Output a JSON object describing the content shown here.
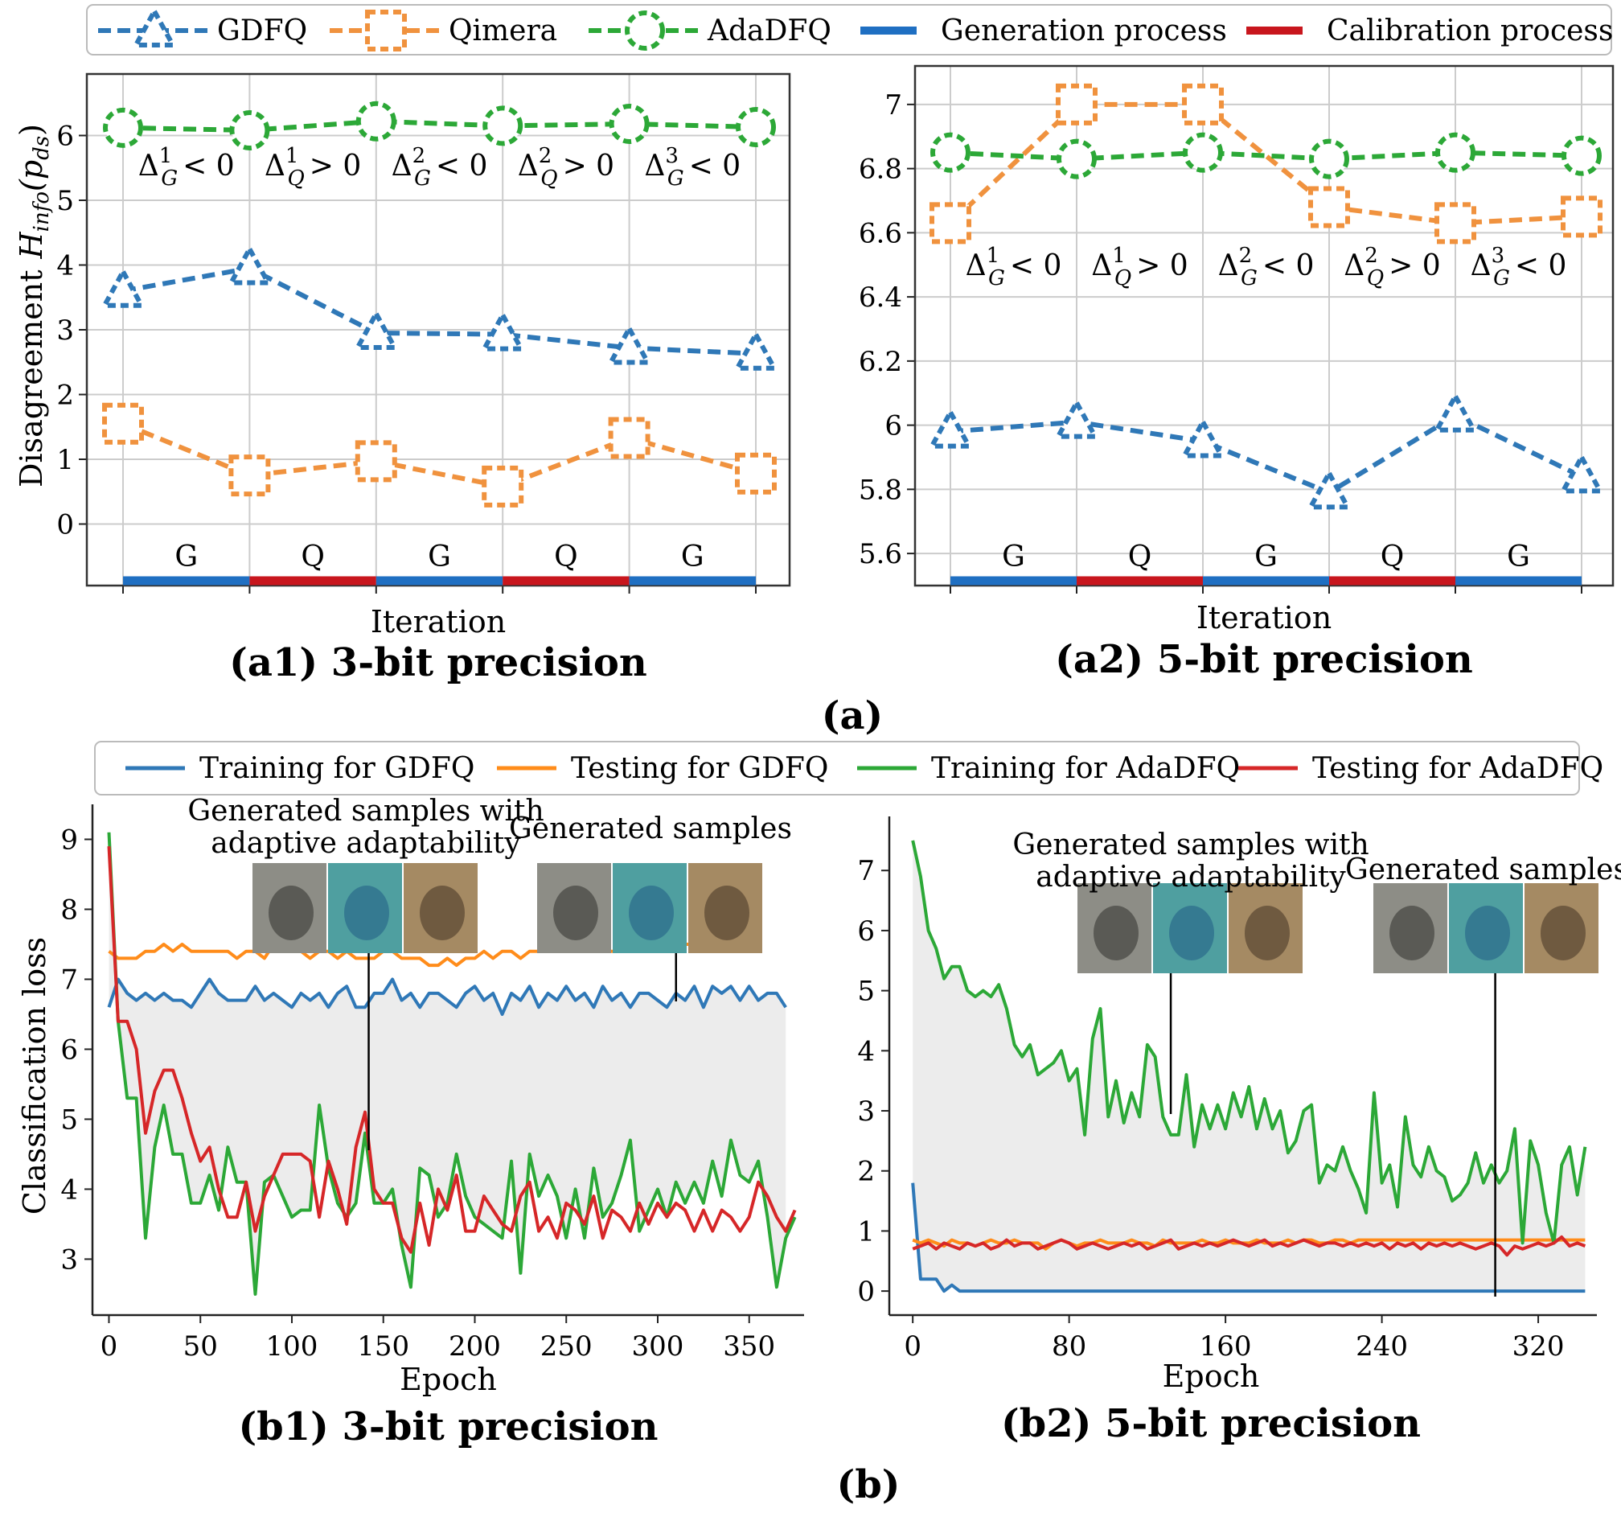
{
  "figure": {
    "group_a_label": "(a)",
    "group_b_label": "(b)"
  },
  "legend_a": {
    "items": [
      {
        "label": "GDFQ",
        "color": "#2f78b7",
        "marker": "triangle"
      },
      {
        "label": "Qimera",
        "color": "#f0923e",
        "marker": "square"
      },
      {
        "label": "AdaDFQ",
        "color": "#2ca837",
        "marker": "circle"
      },
      {
        "label": "Generation process",
        "color": "#1f6fc2",
        "marker": "bar"
      },
      {
        "label": "Calibration process",
        "color": "#c8161d",
        "marker": "bar"
      }
    ]
  },
  "legend_b": {
    "items": [
      {
        "label": "Training for GDFQ",
        "color": "#2f78b7"
      },
      {
        "label": "Testing for GDFQ",
        "color": "#ff8c1a"
      },
      {
        "label": "Training for AdaDFQ",
        "color": "#2ca837"
      },
      {
        "label": "Testing for AdaDFQ",
        "color": "#d62728"
      }
    ]
  },
  "chart_data": [
    {
      "id": "a1",
      "type": "line",
      "title": "(a1) 3-bit precision",
      "xlabel": "Iteration",
      "ylabel": "Disagreement",
      "ylabel_math": {
        "main": "H",
        "sub1": "info",
        "arg": "(p",
        "sub2": "ds",
        "close": ")"
      },
      "x": [
        0,
        1,
        2,
        3,
        4,
        5
      ],
      "ylim": [
        -0.95,
        6.95
      ],
      "yticks": [
        0,
        1,
        2,
        3,
        4,
        5,
        6
      ],
      "grid": true,
      "series": [
        {
          "name": "GDFQ",
          "values": [
            3.6,
            3.95,
            2.95,
            2.93,
            2.72,
            2.63
          ]
        },
        {
          "name": "Qimera",
          "values": [
            1.55,
            0.75,
            0.97,
            0.58,
            1.33,
            0.78
          ]
        },
        {
          "name": "AdaDFQ",
          "values": [
            6.12,
            6.08,
            6.22,
            6.15,
            6.18,
            6.13
          ]
        }
      ],
      "phase_labels": [
        "G",
        "Q",
        "G",
        "Q",
        "G"
      ],
      "phase_types": [
        "generation",
        "calibration",
        "generation",
        "calibration",
        "generation"
      ],
      "delta_annotations": [
        {
          "sym": "Δ",
          "sub": "G",
          "sup": "1",
          "rel": "< 0"
        },
        {
          "sym": "Δ",
          "sub": "Q",
          "sup": "1",
          "rel": "> 0"
        },
        {
          "sym": "Δ",
          "sub": "G",
          "sup": "2",
          "rel": "< 0"
        },
        {
          "sym": "Δ",
          "sub": "Q",
          "sup": "2",
          "rel": "> 0"
        },
        {
          "sym": "Δ",
          "sub": "G",
          "sup": "3",
          "rel": "< 0"
        }
      ]
    },
    {
      "id": "a2",
      "type": "line",
      "title": "(a2) 5-bit precision",
      "xlabel": "Iteration",
      "ylabel": "",
      "x": [
        0,
        1,
        2,
        3,
        4,
        5
      ],
      "ylim": [
        5.5,
        7.12
      ],
      "yticks": [
        5.6,
        5.8,
        6.0,
        6.2,
        6.4,
        6.6,
        6.8,
        7.0
      ],
      "grid": true,
      "series": [
        {
          "name": "GDFQ",
          "values": [
            5.98,
            6.01,
            5.95,
            5.79,
            6.03,
            5.84
          ]
        },
        {
          "name": "Qimera",
          "values": [
            6.63,
            7.0,
            7.0,
            6.68,
            6.63,
            6.65
          ]
        },
        {
          "name": "AdaDFQ",
          "values": [
            6.85,
            6.83,
            6.85,
            6.83,
            6.85,
            6.84
          ]
        }
      ],
      "phase_labels": [
        "G",
        "Q",
        "G",
        "Q",
        "G"
      ],
      "phase_types": [
        "generation",
        "calibration",
        "generation",
        "calibration",
        "generation"
      ],
      "delta_annotations": [
        {
          "sym": "Δ",
          "sub": "G",
          "sup": "1",
          "rel": "< 0"
        },
        {
          "sym": "Δ",
          "sub": "Q",
          "sup": "1",
          "rel": "> 0"
        },
        {
          "sym": "Δ",
          "sub": "G",
          "sup": "2",
          "rel": "< 0"
        },
        {
          "sym": "Δ",
          "sub": "Q",
          "sup": "2",
          "rel": "> 0"
        },
        {
          "sym": "Δ",
          "sub": "G",
          "sup": "3",
          "rel": "< 0"
        }
      ]
    },
    {
      "id": "b1",
      "type": "line",
      "title": "(b1) 3-bit precision",
      "xlabel": "Epoch",
      "ylabel": "Classification loss",
      "xlim": [
        -9,
        380
      ],
      "ylim": [
        2.2,
        9.5
      ],
      "xticks": [
        0,
        50,
        100,
        150,
        200,
        250,
        300,
        350
      ],
      "yticks": [
        3,
        4,
        5,
        6,
        7,
        8,
        9
      ],
      "grid": false,
      "annotations": [
        {
          "text": [
            "Generated samples with",
            "adaptive adaptability"
          ],
          "epoch": 142
        },
        {
          "text": [
            "Generated samples"
          ],
          "epoch": 310
        }
      ],
      "series": [
        {
          "name": "Training for GDFQ",
          "x_step": 5,
          "values": [
            6.6,
            7.0,
            6.8,
            6.7,
            6.8,
            6.7,
            6.8,
            6.7,
            6.7,
            6.6,
            6.8,
            7.0,
            6.8,
            6.7,
            6.7,
            6.7,
            6.9,
            6.7,
            6.8,
            6.7,
            6.6,
            6.8,
            6.7,
            6.8,
            6.6,
            6.8,
            6.9,
            6.6,
            6.6,
            6.8,
            6.8,
            7.0,
            6.7,
            6.8,
            6.6,
            6.8,
            6.8,
            6.7,
            6.6,
            6.8,
            6.9,
            6.7,
            6.8,
            6.5,
            6.8,
            6.7,
            6.9,
            6.6,
            6.8,
            6.7,
            6.9,
            6.7,
            6.8,
            6.6,
            6.9,
            6.7,
            6.8,
            6.6,
            6.8,
            6.8,
            6.7,
            6.6,
            6.8,
            6.7,
            6.9,
            6.6,
            6.9,
            6.8,
            6.9,
            6.7,
            6.9,
            6.7,
            6.8,
            6.8,
            6.6
          ]
        },
        {
          "name": "Testing for GDFQ",
          "x_step": 5,
          "values": [
            7.4,
            7.3,
            7.3,
            7.3,
            7.4,
            7.4,
            7.5,
            7.4,
            7.5,
            7.4,
            7.4,
            7.4,
            7.4,
            7.4,
            7.3,
            7.4,
            7.4,
            7.3,
            7.5,
            7.4,
            7.4,
            7.4,
            7.3,
            7.4,
            7.4,
            7.3,
            7.4,
            7.3,
            7.3,
            7.3,
            7.4,
            7.4,
            7.3,
            7.3,
            7.3,
            7.2,
            7.2,
            7.3,
            7.2,
            7.3,
            7.3,
            7.4,
            7.3,
            7.4,
            7.4,
            7.3,
            7.4,
            7.4,
            7.5,
            7.5,
            7.4,
            7.5,
            7.4,
            7.5,
            7.4,
            7.4,
            7.4,
            7.4,
            7.4,
            7.4,
            7.4,
            7.4,
            7.4,
            7.5,
            7.5,
            7.4,
            7.4,
            7.4,
            7.4,
            7.4,
            7.4,
            7.4
          ]
        },
        {
          "name": "Training for AdaDFQ",
          "x_step": 5,
          "values": [
            9.1,
            6.4,
            5.3,
            5.3,
            3.3,
            4.6,
            5.2,
            4.5,
            4.5,
            3.8,
            3.8,
            4.2,
            3.7,
            4.6,
            4.1,
            4.1,
            2.5,
            4.1,
            4.2,
            3.9,
            3.6,
            3.7,
            3.7,
            5.2,
            4.3,
            3.8,
            3.6,
            3.8,
            4.8,
            3.8,
            3.8,
            4.0,
            3.2,
            2.6,
            4.3,
            4.2,
            3.6,
            3.8,
            4.5,
            3.9,
            3.6,
            3.5,
            3.4,
            3.3,
            4.4,
            2.8,
            4.5,
            3.9,
            4.2,
            3.9,
            3.3,
            4.0,
            3.3,
            4.3,
            3.6,
            3.8,
            4.2,
            4.7,
            3.4,
            3.7,
            4.0,
            3.6,
            4.1,
            3.8,
            4.1,
            3.8,
            4.4,
            3.9,
            4.7,
            4.2,
            4.1,
            4.4,
            3.6,
            2.6,
            3.3,
            3.6
          ]
        },
        {
          "name": "Testing for AdaDFQ",
          "x_step": 5,
          "values": [
            8.9,
            6.4,
            6.4,
            6.0,
            4.8,
            5.4,
            5.7,
            5.7,
            5.3,
            4.8,
            4.4,
            4.6,
            4.0,
            3.6,
            3.6,
            4.1,
            3.4,
            3.9,
            4.2,
            4.5,
            4.5,
            4.5,
            4.4,
            3.6,
            4.4,
            4.0,
            3.5,
            4.6,
            5.1,
            4.0,
            3.8,
            3.8,
            3.3,
            3.1,
            3.8,
            3.2,
            4.0,
            3.7,
            4.2,
            3.4,
            3.4,
            3.9,
            3.7,
            3.5,
            3.4,
            3.9,
            4.1,
            3.4,
            3.6,
            3.3,
            3.8,
            3.7,
            3.5,
            3.9,
            3.3,
            3.7,
            3.6,
            3.4,
            3.8,
            3.5,
            3.8,
            3.6,
            3.8,
            3.7,
            3.4,
            3.7,
            3.4,
            3.7,
            3.6,
            3.4,
            3.6,
            4.1,
            3.9,
            3.6,
            3.4,
            3.7
          ]
        }
      ]
    },
    {
      "id": "b2",
      "type": "line",
      "title": "(b2) 5-bit precision",
      "xlabel": "Epoch",
      "ylabel": "",
      "xlim": [
        -12,
        350
      ],
      "ylim": [
        -0.4,
        7.9
      ],
      "xticks": [
        0,
        80,
        160,
        240,
        320
      ],
      "yticks": [
        0,
        1,
        2,
        3,
        4,
        5,
        6,
        7
      ],
      "grid": false,
      "annotations": [
        {
          "text": [
            "Generated samples with",
            "adaptive adaptability"
          ],
          "epoch": 132
        },
        {
          "text": [
            "Generated samples"
          ],
          "epoch": 298
        }
      ],
      "series": [
        {
          "name": "Training for GDFQ",
          "x_step": 4,
          "values": [
            1.8,
            0.2,
            0.2,
            0.2,
            0.0,
            0.1,
            0.0,
            0.0,
            0.0,
            0.0,
            0.0,
            0.0,
            0.0,
            0.0,
            0.0,
            0.0,
            0.0,
            0.0,
            0.0,
            0.0,
            0.0,
            0.0,
            0.0,
            0.0,
            0.0,
            0.0,
            0.0,
            0.0,
            0.0,
            0.0,
            0.0,
            0.0,
            0.0,
            0.0,
            0.0,
            0.0,
            0.0,
            0.0,
            0.0,
            0.0,
            0.0,
            0.0,
            0.0,
            0.0,
            0.0,
            0.0,
            0.0,
            0.0,
            0.0,
            0.0,
            0.0,
            0.0,
            0.0,
            0.0,
            0.0,
            0.0,
            0.0,
            0.0,
            0.0,
            0.0,
            0.0,
            0.0,
            0.0,
            0.0,
            0.0,
            0.0,
            0.0,
            0.0,
            0.0,
            0.0,
            0.0,
            0.0,
            0.0,
            0.0,
            0.0,
            0.0,
            0.0,
            0.0,
            0.0,
            0.0,
            0.0,
            0.0,
            0.0,
            0.0,
            0.0,
            0.0,
            0.0
          ]
        },
        {
          "name": "Testing for GDFQ",
          "x_step": 4,
          "values": [
            0.85,
            0.8,
            0.85,
            0.8,
            0.75,
            0.85,
            0.8,
            0.8,
            0.75,
            0.8,
            0.85,
            0.8,
            0.8,
            0.85,
            0.8,
            0.8,
            0.8,
            0.7,
            0.8,
            0.85,
            0.8,
            0.75,
            0.8,
            0.8,
            0.85,
            0.8,
            0.8,
            0.8,
            0.85,
            0.8,
            0.8,
            0.75,
            0.85,
            0.8,
            0.8,
            0.8,
            0.8,
            0.85,
            0.8,
            0.8,
            0.85,
            0.8,
            0.8,
            0.8,
            0.85,
            0.8,
            0.8,
            0.8,
            0.85,
            0.8,
            0.85,
            0.85,
            0.8,
            0.8,
            0.85,
            0.85,
            0.8,
            0.85,
            0.85,
            0.85,
            0.85,
            0.85,
            0.85,
            0.85,
            0.85,
            0.85,
            0.85,
            0.85,
            0.85,
            0.85,
            0.85,
            0.85,
            0.85,
            0.85,
            0.85,
            0.85,
            0.85,
            0.85,
            0.85,
            0.85,
            0.85,
            0.85,
            0.85,
            0.85,
            0.85,
            0.85,
            0.85
          ]
        },
        {
          "name": "Training for AdaDFQ",
          "x_step": 4,
          "values": [
            7.5,
            6.9,
            6.0,
            5.7,
            5.2,
            5.4,
            5.4,
            5.0,
            4.9,
            5.0,
            4.9,
            5.1,
            4.7,
            4.1,
            3.9,
            4.1,
            3.6,
            3.7,
            3.8,
            4.0,
            3.5,
            3.7,
            2.6,
            4.2,
            4.7,
            2.9,
            3.5,
            2.8,
            3.3,
            2.9,
            4.1,
            3.9,
            2.9,
            2.6,
            2.6,
            3.6,
            2.4,
            3.1,
            2.7,
            3.1,
            2.7,
            3.3,
            2.9,
            3.4,
            2.7,
            3.2,
            2.7,
            3.0,
            2.3,
            2.5,
            3.0,
            3.1,
            1.8,
            2.1,
            2.0,
            2.4,
            2.0,
            1.7,
            1.3,
            3.3,
            1.8,
            2.1,
            1.4,
            2.9,
            2.1,
            1.9,
            2.4,
            2.0,
            1.9,
            1.5,
            1.6,
            1.8,
            2.3,
            1.8,
            2.1,
            1.8,
            2.0,
            2.7,
            0.8,
            2.5,
            2.1,
            1.3,
            0.8,
            2.1,
            2.4,
            1.6,
            2.4
          ]
        },
        {
          "name": "Testing for AdaDFQ",
          "x_step": 4,
          "values": [
            0.7,
            0.75,
            0.8,
            0.7,
            0.8,
            0.75,
            0.7,
            0.8,
            0.75,
            0.8,
            0.7,
            0.75,
            0.85,
            0.75,
            0.8,
            0.8,
            0.7,
            0.75,
            0.8,
            0.85,
            0.8,
            0.7,
            0.75,
            0.8,
            0.75,
            0.7,
            0.75,
            0.8,
            0.75,
            0.8,
            0.7,
            0.75,
            0.8,
            0.85,
            0.7,
            0.75,
            0.8,
            0.75,
            0.8,
            0.75,
            0.8,
            0.85,
            0.8,
            0.75,
            0.8,
            0.85,
            0.75,
            0.8,
            0.75,
            0.8,
            0.85,
            0.8,
            0.75,
            0.8,
            0.8,
            0.75,
            0.8,
            0.75,
            0.8,
            0.75,
            0.8,
            0.7,
            0.8,
            0.75,
            0.8,
            0.7,
            0.8,
            0.75,
            0.8,
            0.75,
            0.8,
            0.75,
            0.7,
            0.75,
            0.8,
            0.75,
            0.6,
            0.75,
            0.7,
            0.75,
            0.8,
            0.75,
            0.8,
            0.9,
            0.75,
            0.8,
            0.75
          ]
        }
      ]
    }
  ]
}
